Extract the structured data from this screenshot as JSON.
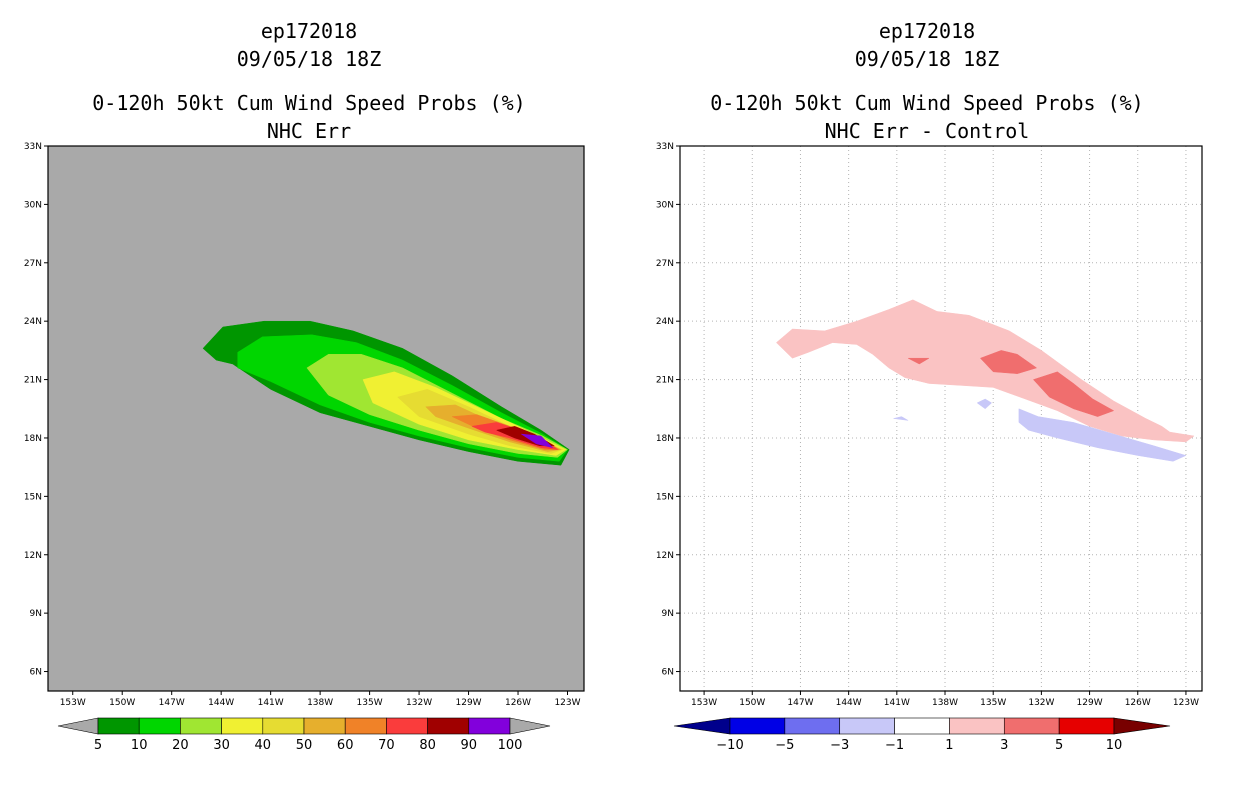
{
  "left": {
    "title_id": "ep172018",
    "title_time": "09/05/18 18Z",
    "title_main": "0-120h 50kt Cum Wind Speed Probs (%)",
    "title_sub": "NHC Err"
  },
  "right": {
    "title_id": "ep172018",
    "title_time": "09/05/18 18Z",
    "title_main": "0-120h 50kt Cum Wind Speed Probs (%)",
    "title_sub": "NHC Err - Control"
  },
  "chart_data": [
    {
      "type": "heatmap",
      "title": "0-120h 50kt Cum Wind Speed Probs (%) — NHC Err",
      "xlabel": "",
      "ylabel": "",
      "lon_ticks": [
        "153W",
        "150W",
        "147W",
        "144W",
        "141W",
        "138W",
        "135W",
        "132W",
        "129W",
        "126W",
        "123W"
      ],
      "lat_ticks": [
        "6N",
        "9N",
        "12N",
        "15N",
        "18N",
        "21N",
        "24N",
        "27N",
        "30N",
        "33N"
      ],
      "xlim": [
        -154.5,
        -122.0
      ],
      "ylim": [
        5.0,
        33.0
      ],
      "grid": false,
      "background": "#a9a9a9",
      "colorbar": {
        "levels": [
          "5",
          "10",
          "20",
          "30",
          "40",
          "50",
          "60",
          "70",
          "80",
          "90",
          "100"
        ],
        "colors": [
          "#009600",
          "#00d600",
          "#a0e632",
          "#f0f032",
          "#e6dc32",
          "#e6af2d",
          "#f08228",
          "#fa3c3c",
          "#a00000",
          "#8200dc"
        ],
        "under_color": "#a9a9a9",
        "over_color": "#a9a9a9"
      },
      "contours": [
        {
          "level": 5,
          "color": "#009600",
          "polygon": [
            [
              -145.1,
              22.6
            ],
            [
              -143.9,
              23.7
            ],
            [
              -141.4,
              24.0
            ],
            [
              -138.6,
              24.0
            ],
            [
              -136.0,
              23.5
            ],
            [
              -133.0,
              22.6
            ],
            [
              -130.0,
              21.2
            ],
            [
              -127.0,
              19.6
            ],
            [
              -124.6,
              18.4
            ],
            [
              -122.9,
              17.4
            ],
            [
              -123.4,
              16.6
            ],
            [
              -126.0,
              16.8
            ],
            [
              -129.0,
              17.3
            ],
            [
              -132.0,
              17.9
            ],
            [
              -135.0,
              18.6
            ],
            [
              -138.0,
              19.3
            ],
            [
              -141.0,
              20.5
            ],
            [
              -143.3,
              21.8
            ],
            [
              -144.3,
              22.0
            ]
          ]
        },
        {
          "level": 10,
          "color": "#00d600",
          "polygon": [
            [
              -143.0,
              22.4
            ],
            [
              -141.5,
              23.2
            ],
            [
              -138.5,
              23.3
            ],
            [
              -135.8,
              22.9
            ],
            [
              -133.0,
              22.0
            ],
            [
              -130.0,
              20.7
            ],
            [
              -127.0,
              19.3
            ],
            [
              -124.5,
              18.2
            ],
            [
              -123.0,
              17.4
            ],
            [
              -123.5,
              16.8
            ],
            [
              -126.0,
              17.0
            ],
            [
              -129.0,
              17.5
            ],
            [
              -132.0,
              18.1
            ],
            [
              -135.0,
              18.8
            ],
            [
              -138.0,
              19.7
            ],
            [
              -141.0,
              20.9
            ],
            [
              -143.0,
              21.6
            ]
          ]
        },
        {
          "level": 20,
          "color": "#a0e632",
          "polygon": [
            [
              -138.8,
              21.6
            ],
            [
              -137.5,
              22.3
            ],
            [
              -135.5,
              22.3
            ],
            [
              -133.0,
              21.6
            ],
            [
              -130.0,
              20.3
            ],
            [
              -127.0,
              19.0
            ],
            [
              -124.5,
              18.1
            ],
            [
              -123.0,
              17.4
            ],
            [
              -123.6,
              17.0
            ],
            [
              -126.0,
              17.2
            ],
            [
              -129.0,
              17.7
            ],
            [
              -132.0,
              18.4
            ],
            [
              -135.0,
              19.2
            ],
            [
              -137.5,
              20.2
            ]
          ]
        },
        {
          "level": 30,
          "color": "#f0f032",
          "polygon": [
            [
              -135.4,
              21.0
            ],
            [
              -133.5,
              21.4
            ],
            [
              -131.0,
              20.6
            ],
            [
              -128.0,
              19.4
            ],
            [
              -125.5,
              18.4
            ],
            [
              -123.1,
              17.4
            ],
            [
              -123.7,
              17.1
            ],
            [
              -126.0,
              17.4
            ],
            [
              -129.0,
              17.9
            ],
            [
              -132.0,
              18.7
            ],
            [
              -134.8,
              19.8
            ]
          ]
        },
        {
          "level": 40,
          "color": "#e6dc32",
          "polygon": [
            [
              -133.3,
              20.1
            ],
            [
              -131.5,
              20.5
            ],
            [
              -129.0,
              19.6
            ],
            [
              -126.5,
              18.6
            ],
            [
              -123.3,
              17.4
            ],
            [
              -124.0,
              17.2
            ],
            [
              -126.5,
              17.6
            ],
            [
              -129.0,
              18.2
            ],
            [
              -132.0,
              19.1
            ]
          ]
        },
        {
          "level": 50,
          "color": "#e6af2d",
          "polygon": [
            [
              -131.6,
              19.6
            ],
            [
              -129.8,
              19.7
            ],
            [
              -127.5,
              18.8
            ],
            [
              -125.5,
              18.2
            ],
            [
              -123.4,
              17.4
            ],
            [
              -124.2,
              17.3
            ],
            [
              -126.5,
              17.8
            ],
            [
              -129.0,
              18.5
            ],
            [
              -131.0,
              19.1
            ]
          ]
        },
        {
          "level": 60,
          "color": "#f08228",
          "polygon": [
            [
              -130.0,
              19.1
            ],
            [
              -128.5,
              19.2
            ],
            [
              -126.5,
              18.6
            ],
            [
              -124.6,
              18.0
            ],
            [
              -123.5,
              17.4
            ],
            [
              -124.4,
              17.4
            ],
            [
              -126.5,
              17.9
            ],
            [
              -128.5,
              18.5
            ]
          ]
        },
        {
          "level": 70,
          "color": "#fa3c3c",
          "polygon": [
            [
              -128.8,
              18.6
            ],
            [
              -127.3,
              18.8
            ],
            [
              -125.5,
              18.3
            ],
            [
              -124.2,
              17.8
            ],
            [
              -123.6,
              17.4
            ],
            [
              -124.6,
              17.5
            ],
            [
              -126.5,
              18.0
            ],
            [
              -128.0,
              18.3
            ]
          ]
        },
        {
          "level": 80,
          "color": "#a00000",
          "polygon": [
            [
              -127.3,
              18.4
            ],
            [
              -126.2,
              18.6
            ],
            [
              -125.0,
              18.2
            ],
            [
              -123.8,
              17.6
            ],
            [
              -124.7,
              17.6
            ],
            [
              -126.2,
              18.0
            ]
          ]
        },
        {
          "level": 90,
          "color": "#8200dc",
          "polygon": [
            [
              -125.8,
              18.2
            ],
            [
              -124.6,
              18.1
            ],
            [
              -123.9,
              17.5
            ],
            [
              -124.9,
              17.7
            ]
          ]
        }
      ]
    },
    {
      "type": "heatmap",
      "title": "0-120h 50kt Cum Wind Speed Probs (%) — NHC Err - Control",
      "xlabel": "",
      "ylabel": "",
      "lon_ticks": [
        "153W",
        "150W",
        "147W",
        "144W",
        "141W",
        "138W",
        "135W",
        "132W",
        "129W",
        "126W",
        "123W"
      ],
      "lat_ticks": [
        "6N",
        "9N",
        "12N",
        "15N",
        "18N",
        "21N",
        "24N",
        "27N",
        "30N",
        "33N"
      ],
      "xlim": [
        -154.5,
        -122.0
      ],
      "ylim": [
        5.0,
        33.0
      ],
      "grid": true,
      "background": "#ffffff",
      "colorbar": {
        "levels": [
          "-10",
          "-5",
          "-3",
          "-1",
          "1",
          "3",
          "5",
          "10"
        ],
        "colors": [
          "#0000e6",
          "#6e6ef0",
          "#c8c8f8",
          "#ffffff",
          "#fac3c3",
          "#f06e6e",
          "#e60000"
        ],
        "under_color": "#00008c",
        "over_color": "#780000"
      },
      "contours": [
        {
          "level": 1,
          "color": "#fac3c3",
          "polygon": [
            [
              -148.5,
              22.9
            ],
            [
              -147.5,
              23.6
            ],
            [
              -145.5,
              23.5
            ],
            [
              -143.5,
              24.0
            ],
            [
              -141.5,
              24.6
            ],
            [
              -140.0,
              25.1
            ],
            [
              -138.5,
              24.5
            ],
            [
              -136.5,
              24.3
            ],
            [
              -134.0,
              23.5
            ],
            [
              -132.0,
              22.5
            ],
            [
              -129.5,
              21.0
            ],
            [
              -127.5,
              19.9
            ],
            [
              -125.5,
              19.0
            ],
            [
              -124.5,
              18.6
            ],
            [
              -124.0,
              18.3
            ],
            [
              -122.5,
              18.1
            ],
            [
              -123.0,
              17.8
            ],
            [
              -125.0,
              17.9
            ],
            [
              -127.0,
              18.1
            ],
            [
              -129.0,
              18.6
            ],
            [
              -131.0,
              19.4
            ],
            [
              -133.0,
              20.0
            ],
            [
              -135.0,
              20.6
            ],
            [
              -137.0,
              20.7
            ],
            [
              -139.0,
              20.8
            ],
            [
              -140.5,
              21.1
            ],
            [
              -141.5,
              21.6
            ],
            [
              -142.5,
              22.3
            ],
            [
              -143.5,
              22.8
            ],
            [
              -145.0,
              22.9
            ],
            [
              -146.5,
              22.4
            ],
            [
              -147.5,
              22.1
            ]
          ]
        },
        {
          "level": 3,
          "color": "#f06e6e",
          "polygon": [
            [
              -135.8,
              22.1
            ],
            [
              -134.5,
              22.5
            ],
            [
              -133.5,
              22.3
            ],
            [
              -132.3,
              21.6
            ],
            [
              -133.5,
              21.3
            ],
            [
              -135.0,
              21.4
            ]
          ]
        },
        {
          "level": 3,
          "color": "#f06e6e",
          "polygon": [
            [
              -132.5,
              21.0
            ],
            [
              -131.0,
              21.4
            ],
            [
              -130.0,
              20.8
            ],
            [
              -128.8,
              20.0
            ],
            [
              -127.5,
              19.4
            ],
            [
              -128.5,
              19.1
            ],
            [
              -130.0,
              19.5
            ],
            [
              -131.5,
              20.1
            ]
          ]
        },
        {
          "level": 3,
          "color": "#f06e6e",
          "polygon": [
            [
              -140.3,
              22.1
            ],
            [
              -139.0,
              22.1
            ],
            [
              -139.6,
              21.8
            ]
          ]
        },
        {
          "level": -1,
          "color": "#c8c8f8",
          "polygon": [
            [
              -133.4,
              19.5
            ],
            [
              -132.2,
              19.1
            ],
            [
              -130.0,
              18.8
            ],
            [
              -127.5,
              18.2
            ],
            [
              -125.0,
              17.6
            ],
            [
              -123.0,
              17.1
            ],
            [
              -123.8,
              16.8
            ],
            [
              -126.0,
              17.1
            ],
            [
              -128.5,
              17.5
            ],
            [
              -131.0,
              18.0
            ],
            [
              -132.8,
              18.4
            ],
            [
              -133.4,
              18.8
            ]
          ]
        },
        {
          "level": -1,
          "color": "#c8c8f8",
          "polygon": [
            [
              -136.0,
              19.8
            ],
            [
              -135.5,
              19.5
            ],
            [
              -135.1,
              19.8
            ],
            [
              -135.5,
              20.0
            ]
          ]
        },
        {
          "level": -1,
          "color": "#c8c8f8",
          "polygon": [
            [
              -141.2,
              19.0
            ],
            [
              -140.3,
              18.9
            ],
            [
              -140.7,
              19.1
            ]
          ]
        }
      ]
    }
  ]
}
